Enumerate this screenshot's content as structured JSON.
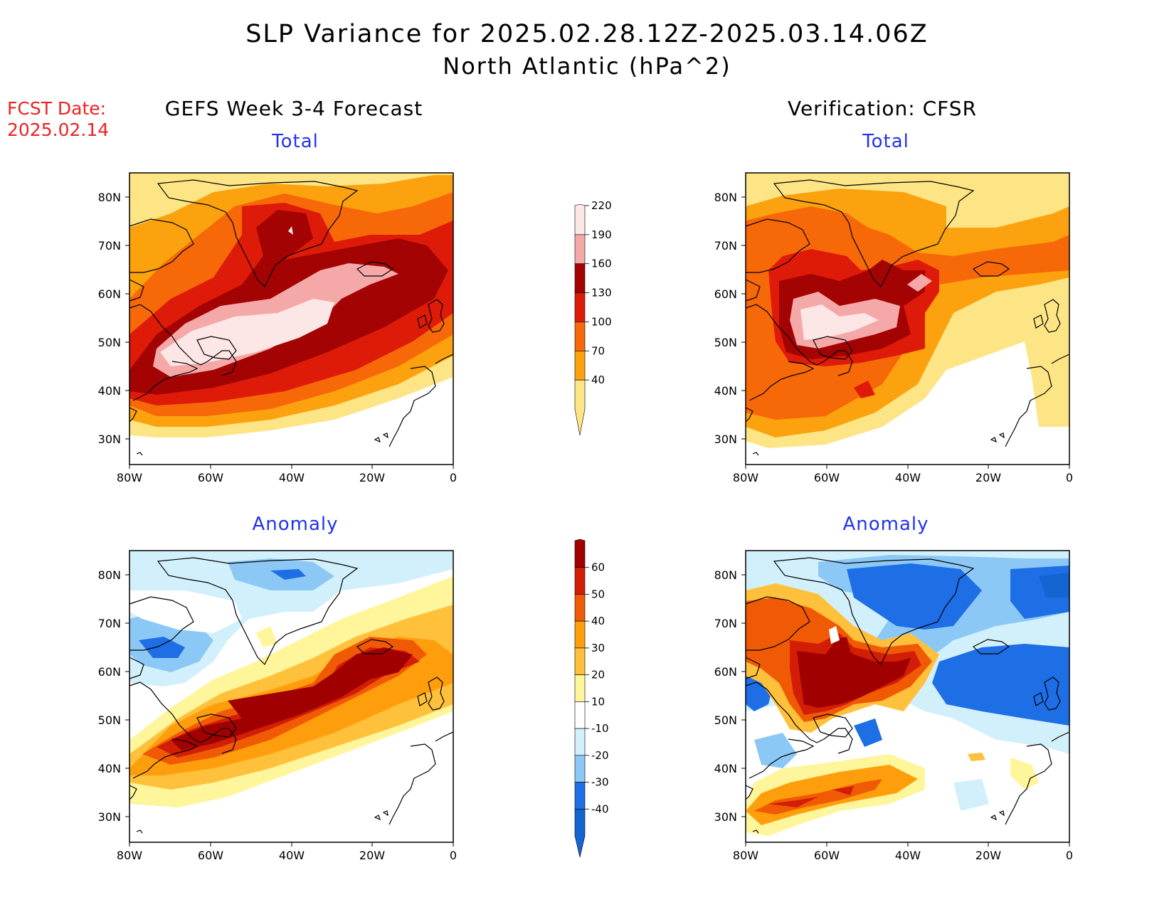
{
  "title": {
    "line1": "SLP Variance for 2025.02.28.12Z-2025.03.14.06Z",
    "line2": "North Atlantic (hPa^2)"
  },
  "fcst": {
    "label": "FCST Date:",
    "date": "2025.02.14"
  },
  "columns": {
    "left": "GEFS Week 3-4 Forecast",
    "right": "Verification: CFSR"
  },
  "panels": {
    "fcst_total": "Total",
    "fcst_anomaly": "Anomaly",
    "ver_total": "Total",
    "ver_anomaly": "Anomaly"
  },
  "axes": {
    "lat_labels": [
      "80N",
      "70N",
      "60N",
      "50N",
      "40N",
      "30N"
    ],
    "lon_labels": [
      "80W",
      "60W",
      "40W",
      "20W",
      "0"
    ]
  },
  "colorbars": {
    "total": {
      "levels": [
        "40",
        "70",
        "100",
        "130",
        "160",
        "190",
        "220"
      ],
      "colors": [
        "#fde585",
        "#fba20e",
        "#f76808",
        "#de1b08",
        "#a30303",
        "#f5a8a8",
        "#fde6e6"
      ]
    },
    "anomaly": {
      "levels": [
        "-40",
        "-30",
        "-20",
        "-10",
        "10",
        "20",
        "30",
        "40",
        "50",
        "60"
      ],
      "colors": [
        "#1464d2",
        "#1e6ee6",
        "#8cc8f5",
        "#d2f0fb",
        "#ffffff",
        "#fff59a",
        "#ffc03c",
        "#ff9e0c",
        "#f05a05",
        "#d21e05",
        "#a00000"
      ]
    }
  },
  "legend_colors": {
    "title_red": "#ee2222",
    "subtitle_blue": "#2233ee"
  }
}
